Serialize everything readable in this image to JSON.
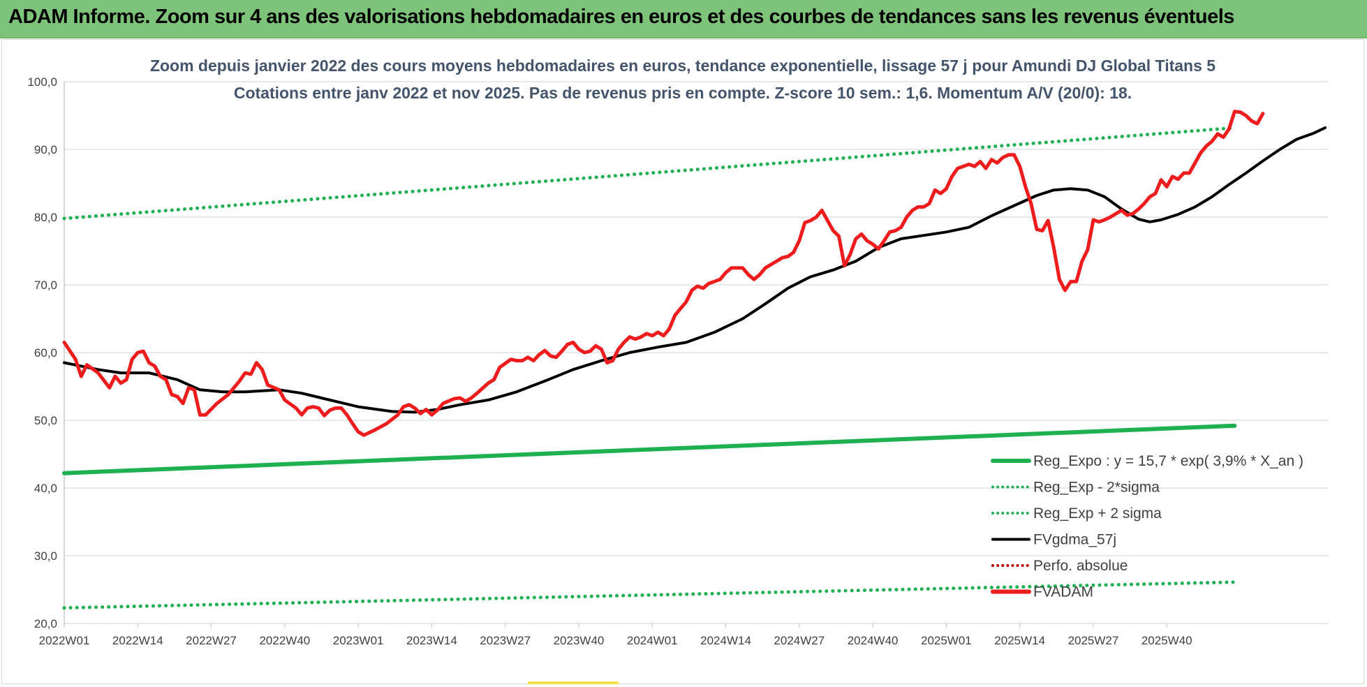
{
  "banner": {
    "title": "ADAM Informe. Zoom sur 4 ans des valorisations hebdomadaires en euros et des courbes de tendances sans les revenus éventuels"
  },
  "chart_data": {
    "type": "line",
    "title": "Zoom depuis janvier 2022 des cours moyens hebdomadaires en euros, tendance exponentielle, lissage 57 j pour Amundi DJ Global Titans 5",
    "subtitle": "Cotations entre janv 2022 et nov 2025. Pas de revenus pris en compte. Z-score 10 sem.: 1,6. Momentum A/V (20/0): 18.",
    "ylim": [
      20,
      100
    ],
    "y_ticks": [
      "100,0",
      "90,0",
      "80,0",
      "70,0",
      "60,0",
      "50,0",
      "40,0",
      "30,0",
      "20,0"
    ],
    "x_ticks": [
      "2022W01",
      "2022W14",
      "2022W27",
      "2022W40",
      "2023W01",
      "2023W14",
      "2023W27",
      "2023W40",
      "2024W01",
      "2024W14",
      "2024W27",
      "2024W40",
      "2025W01",
      "2025W14",
      "2025W27",
      "2025W40"
    ],
    "x_range_weeks": [
      0,
      207
    ],
    "grid": "horizontal",
    "legend_position": "bottom-right",
    "series": [
      {
        "name": "Reg_Expo : y = 15,7 * exp( 3,9% *  X_an )",
        "style": "solid",
        "color": "#1fb052",
        "points": [
          [
            0,
            42.2
          ],
          [
            207,
            49.2
          ]
        ]
      },
      {
        "name": "Reg_Exp - 2*sigma",
        "style": "dotted",
        "color": "#1fb052",
        "points": [
          [
            0,
            22.3
          ],
          [
            207,
            26.1
          ]
        ]
      },
      {
        "name": "Reg_Exp + 2 sigma",
        "style": "dotted",
        "color": "#1fb052",
        "points": [
          [
            0,
            79.8
          ],
          [
            207,
            93.2
          ]
        ]
      },
      {
        "name": "FVgdma_57j",
        "style": "solid",
        "color": "#000000",
        "points": [
          [
            0,
            58.5
          ],
          [
            6,
            57.5
          ],
          [
            10,
            57.0
          ],
          [
            15,
            57.0
          ],
          [
            20,
            56.0
          ],
          [
            24,
            54.5
          ],
          [
            28,
            54.2
          ],
          [
            32,
            54.2
          ],
          [
            38,
            54.5
          ],
          [
            42,
            54.0
          ],
          [
            46,
            53.2
          ],
          [
            52,
            52.0
          ],
          [
            58,
            51.3
          ],
          [
            62,
            51.2
          ],
          [
            66,
            51.6
          ],
          [
            70,
            52.3
          ],
          [
            75,
            53.0
          ],
          [
            80,
            54.2
          ],
          [
            85,
            55.8
          ],
          [
            90,
            57.5
          ],
          [
            95,
            58.8
          ],
          [
            100,
            60.0
          ],
          [
            105,
            60.8
          ],
          [
            110,
            61.5
          ],
          [
            115,
            63.0
          ],
          [
            120,
            65.0
          ],
          [
            124,
            67.2
          ],
          [
            128,
            69.5
          ],
          [
            132,
            71.2
          ],
          [
            136,
            72.2
          ],
          [
            140,
            73.5
          ],
          [
            144,
            75.5
          ],
          [
            148,
            76.8
          ],
          [
            152,
            77.3
          ],
          [
            156,
            77.8
          ],
          [
            160,
            78.5
          ],
          [
            164,
            80.2
          ],
          [
            168,
            81.7
          ],
          [
            172,
            83.2
          ],
          [
            175,
            84.0
          ],
          [
            178,
            84.2
          ],
          [
            181,
            84.0
          ],
          [
            184,
            83.0
          ],
          [
            187,
            81.2
          ],
          [
            190,
            79.7
          ],
          [
            192,
            79.3
          ],
          [
            194,
            79.6
          ],
          [
            197,
            80.4
          ],
          [
            200,
            81.5
          ],
          [
            203,
            83.0
          ],
          [
            206,
            84.8
          ],
          [
            209,
            86.5
          ],
          [
            212,
            88.3
          ],
          [
            215,
            90.0
          ],
          [
            218,
            91.5
          ],
          [
            221,
            92.4
          ],
          [
            223,
            93.2
          ]
        ]
      },
      {
        "name": "Perfo. absolue",
        "style": "dotted",
        "color": "#c00000",
        "points": []
      },
      {
        "name": "FVADAM",
        "style": "solid",
        "color": "#ee1c1c",
        "points": [
          [
            0,
            61.5
          ],
          [
            2,
            59.0
          ],
          [
            3,
            56.5
          ],
          [
            4,
            58.2
          ],
          [
            6,
            57.0
          ],
          [
            8,
            54.8
          ],
          [
            9,
            56.5
          ],
          [
            10,
            55.5
          ],
          [
            11,
            56.0
          ],
          [
            12,
            59.0
          ],
          [
            13,
            60.0
          ],
          [
            14,
            60.2
          ],
          [
            15,
            58.5
          ],
          [
            16,
            58.0
          ],
          [
            17,
            56.5
          ],
          [
            18,
            56.0
          ],
          [
            19,
            53.8
          ],
          [
            20,
            53.5
          ],
          [
            21,
            52.5
          ],
          [
            22,
            54.8
          ],
          [
            23,
            54.5
          ],
          [
            24,
            50.8
          ],
          [
            25,
            50.8
          ],
          [
            27,
            52.5
          ],
          [
            29,
            53.8
          ],
          [
            31,
            55.8
          ],
          [
            32,
            57.0
          ],
          [
            33,
            56.8
          ],
          [
            34,
            58.5
          ],
          [
            35,
            57.5
          ],
          [
            36,
            55.2
          ],
          [
            38,
            54.5
          ],
          [
            39,
            53.0
          ],
          [
            41,
            51.8
          ],
          [
            42,
            50.8
          ],
          [
            43,
            51.8
          ],
          [
            44,
            52.0
          ],
          [
            45,
            51.8
          ],
          [
            46,
            50.7
          ],
          [
            47,
            51.5
          ],
          [
            48,
            51.8
          ],
          [
            49,
            51.8
          ],
          [
            50,
            50.8
          ],
          [
            51,
            49.5
          ],
          [
            52,
            48.3
          ],
          [
            53,
            47.8
          ],
          [
            55,
            48.6
          ],
          [
            57,
            49.5
          ],
          [
            59,
            50.8
          ],
          [
            60,
            52.0
          ],
          [
            61,
            52.3
          ],
          [
            62,
            51.8
          ],
          [
            63,
            51.0
          ],
          [
            64,
            51.6
          ],
          [
            65,
            50.8
          ],
          [
            66,
            51.5
          ],
          [
            67,
            52.5
          ],
          [
            69,
            53.2
          ],
          [
            70,
            53.3
          ],
          [
            71,
            52.8
          ],
          [
            72,
            53.3
          ],
          [
            73,
            54.0
          ],
          [
            75,
            55.5
          ],
          [
            76,
            56.0
          ],
          [
            77,
            57.8
          ],
          [
            79,
            59.0
          ],
          [
            80,
            58.8
          ],
          [
            81,
            58.8
          ],
          [
            82,
            59.3
          ],
          [
            83,
            58.8
          ],
          [
            84,
            59.7
          ],
          [
            85,
            60.3
          ],
          [
            86,
            59.5
          ],
          [
            87,
            59.3
          ],
          [
            88,
            60.2
          ],
          [
            89,
            61.2
          ],
          [
            90,
            61.5
          ],
          [
            91,
            60.5
          ],
          [
            92,
            60.0
          ],
          [
            93,
            60.2
          ],
          [
            94,
            61.0
          ],
          [
            95,
            60.5
          ],
          [
            96,
            58.5
          ],
          [
            97,
            58.8
          ],
          [
            98,
            60.5
          ],
          [
            99,
            61.5
          ],
          [
            100,
            62.3
          ],
          [
            101,
            62.0
          ],
          [
            102,
            62.3
          ],
          [
            103,
            62.8
          ],
          [
            104,
            62.5
          ],
          [
            105,
            63.0
          ],
          [
            106,
            62.5
          ],
          [
            107,
            63.5
          ],
          [
            108,
            65.5
          ],
          [
            109,
            66.5
          ],
          [
            110,
            67.5
          ],
          [
            111,
            69.2
          ],
          [
            112,
            69.8
          ],
          [
            113,
            69.5
          ],
          [
            114,
            70.2
          ],
          [
            115,
            70.5
          ],
          [
            116,
            70.8
          ],
          [
            117,
            71.8
          ],
          [
            118,
            72.5
          ],
          [
            120,
            72.5
          ],
          [
            121,
            71.5
          ],
          [
            122,
            70.8
          ],
          [
            123,
            71.5
          ],
          [
            124,
            72.5
          ],
          [
            125,
            73.0
          ],
          [
            126,
            73.5
          ],
          [
            127,
            74.0
          ],
          [
            128,
            74.2
          ],
          [
            129,
            74.8
          ],
          [
            130,
            76.5
          ],
          [
            131,
            79.2
          ],
          [
            132,
            79.5
          ],
          [
            133,
            80.0
          ],
          [
            134,
            81.0
          ],
          [
            135,
            79.5
          ],
          [
            136,
            78.0
          ],
          [
            137,
            77.2
          ],
          [
            138,
            72.8
          ],
          [
            139,
            74.5
          ],
          [
            140,
            76.8
          ],
          [
            141,
            77.5
          ],
          [
            142,
            76.5
          ],
          [
            143,
            76.0
          ],
          [
            144,
            75.3
          ],
          [
            145,
            76.5
          ],
          [
            146,
            77.8
          ],
          [
            147,
            78.0
          ],
          [
            148,
            78.5
          ],
          [
            149,
            80.0
          ],
          [
            150,
            81.0
          ],
          [
            151,
            81.5
          ],
          [
            152,
            81.5
          ],
          [
            153,
            82.0
          ],
          [
            154,
            84.0
          ],
          [
            155,
            83.5
          ],
          [
            156,
            84.2
          ],
          [
            157,
            86.0
          ],
          [
            158,
            87.2
          ],
          [
            159,
            87.5
          ],
          [
            160,
            87.8
          ],
          [
            161,
            87.5
          ],
          [
            162,
            88.2
          ],
          [
            163,
            87.2
          ],
          [
            164,
            88.5
          ],
          [
            165,
            88.0
          ],
          [
            166,
            88.8
          ],
          [
            167,
            89.2
          ],
          [
            168,
            89.2
          ],
          [
            169,
            87.5
          ],
          [
            170,
            84.5
          ],
          [
            171,
            82.0
          ],
          [
            172,
            78.2
          ],
          [
            173,
            78.0
          ],
          [
            174,
            79.5
          ],
          [
            175,
            75.5
          ],
          [
            176,
            70.8
          ],
          [
            177,
            69.2
          ],
          [
            178,
            70.5
          ],
          [
            179,
            70.5
          ],
          [
            180,
            73.5
          ],
          [
            181,
            75.2
          ],
          [
            182,
            79.6
          ],
          [
            183,
            79.3
          ],
          [
            184,
            79.6
          ],
          [
            185,
            80.0
          ],
          [
            186,
            80.5
          ],
          [
            187,
            81.0
          ],
          [
            188,
            80.3
          ],
          [
            189,
            80.5
          ],
          [
            190,
            81.2
          ],
          [
            191,
            82.0
          ],
          [
            192,
            83.0
          ],
          [
            193,
            83.5
          ],
          [
            194,
            85.5
          ],
          [
            195,
            84.5
          ],
          [
            196,
            86.0
          ],
          [
            197,
            85.6
          ],
          [
            198,
            86.5
          ],
          [
            199,
            86.5
          ],
          [
            200,
            88.0
          ],
          [
            201,
            89.5
          ],
          [
            202,
            90.5
          ],
          [
            203,
            91.2
          ],
          [
            204,
            92.3
          ],
          [
            205,
            91.8
          ],
          [
            206,
            93.0
          ],
          [
            207,
            95.6
          ],
          [
            208,
            95.5
          ],
          [
            209,
            95.0
          ],
          [
            210,
            94.2
          ],
          [
            211,
            93.8
          ],
          [
            212,
            95.3
          ]
        ]
      }
    ]
  }
}
